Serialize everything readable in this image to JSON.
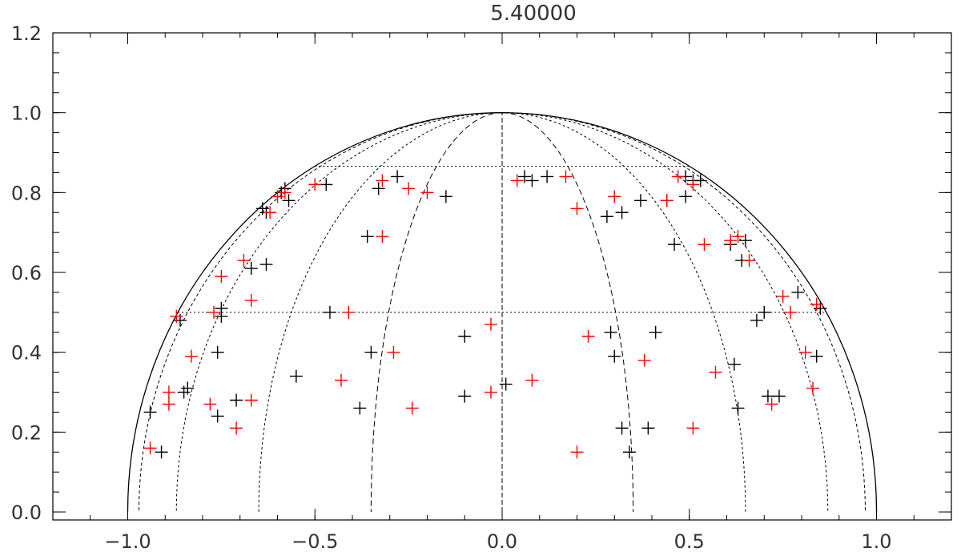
{
  "chart_data": {
    "type": "scatter",
    "title": "5.40000",
    "xlabel": "",
    "ylabel": "",
    "xlim": [
      -1.2,
      1.2
    ],
    "ylim": [
      -0.02,
      1.2
    ],
    "x_ticks": [
      {
        "value": -1.0,
        "label": "−1.0"
      },
      {
        "value": -0.5,
        "label": "−0.5"
      },
      {
        "value": 0.0,
        "label": "0.0"
      },
      {
        "value": 0.5,
        "label": "0.5"
      },
      {
        "value": 1.0,
        "label": "1.0"
      }
    ],
    "y_ticks": [
      {
        "value": 0.0,
        "label": "0.0"
      },
      {
        "value": 0.2,
        "label": "0.2"
      },
      {
        "value": 0.4,
        "label": "0.4"
      },
      {
        "value": 0.6,
        "label": "0.6"
      },
      {
        "value": 0.8,
        "label": "0.8"
      },
      {
        "value": 1.0,
        "label": "1.0"
      },
      {
        "value": 1.2,
        "label": "1.2"
      }
    ],
    "x_minor_step": 0.1,
    "y_minor_step": 0.05,
    "grid": false,
    "overlay": {
      "outer_circle_radius": 1.0,
      "meridian_ellipse_semi_axes": [
        0.35,
        0.65,
        0.87,
        0.97
      ],
      "latitude_lines_y": [
        0.5,
        0.866
      ]
    },
    "series": [
      {
        "color": "#000000",
        "points": [
          [
            -0.94,
            0.25
          ],
          [
            -0.91,
            0.15
          ],
          [
            -0.86,
            0.48
          ],
          [
            -0.85,
            0.3
          ],
          [
            -0.84,
            0.31
          ],
          [
            -0.76,
            0.4
          ],
          [
            -0.76,
            0.24
          ],
          [
            -0.75,
            0.49
          ],
          [
            -0.75,
            0.51
          ],
          [
            -0.71,
            0.28
          ],
          [
            -0.67,
            0.61
          ],
          [
            -0.63,
            0.62
          ],
          [
            -0.64,
            0.76
          ],
          [
            -0.63,
            0.75
          ],
          [
            -0.59,
            0.8
          ],
          [
            -0.58,
            0.81
          ],
          [
            -0.57,
            0.78
          ],
          [
            -0.47,
            0.82
          ],
          [
            -0.46,
            0.5
          ],
          [
            -0.55,
            0.34
          ],
          [
            -0.38,
            0.26
          ],
          [
            -0.36,
            0.69
          ],
          [
            -0.35,
            0.4
          ],
          [
            -0.33,
            0.81
          ],
          [
            -0.28,
            0.84
          ],
          [
            -0.15,
            0.79
          ],
          [
            -0.1,
            0.44
          ],
          [
            -0.1,
            0.29
          ],
          [
            0.01,
            0.32
          ],
          [
            0.06,
            0.84
          ],
          [
            0.08,
            0.83
          ],
          [
            0.12,
            0.84
          ],
          [
            0.28,
            0.74
          ],
          [
            0.29,
            0.45
          ],
          [
            0.3,
            0.39
          ],
          [
            0.32,
            0.21
          ],
          [
            0.32,
            0.75
          ],
          [
            0.34,
            0.15
          ],
          [
            0.37,
            0.78
          ],
          [
            0.39,
            0.21
          ],
          [
            0.41,
            0.45
          ],
          [
            0.44,
            0.78
          ],
          [
            0.46,
            0.67
          ],
          [
            0.49,
            0.79
          ],
          [
            0.49,
            0.84
          ],
          [
            0.51,
            0.83
          ],
          [
            0.53,
            0.83
          ],
          [
            0.61,
            0.67
          ],
          [
            0.62,
            0.37
          ],
          [
            0.63,
            0.26
          ],
          [
            0.64,
            0.63
          ],
          [
            0.65,
            0.68
          ],
          [
            0.68,
            0.48
          ],
          [
            0.7,
            0.5
          ],
          [
            0.71,
            0.29
          ],
          [
            0.74,
            0.29
          ],
          [
            0.79,
            0.55
          ],
          [
            0.84,
            0.39
          ],
          [
            0.85,
            0.51
          ]
        ]
      },
      {
        "color": "#ff0000",
        "points": [
          [
            -0.94,
            0.16
          ],
          [
            -0.89,
            0.3
          ],
          [
            -0.89,
            0.27
          ],
          [
            -0.87,
            0.49
          ],
          [
            -0.83,
            0.39
          ],
          [
            -0.78,
            0.27
          ],
          [
            -0.77,
            0.5
          ],
          [
            -0.75,
            0.59
          ],
          [
            -0.71,
            0.21
          ],
          [
            -0.69,
            0.63
          ],
          [
            -0.67,
            0.53
          ],
          [
            -0.67,
            0.28
          ],
          [
            -0.62,
            0.75
          ],
          [
            -0.6,
            0.79
          ],
          [
            -0.58,
            0.8
          ],
          [
            -0.5,
            0.82
          ],
          [
            -0.43,
            0.33
          ],
          [
            -0.41,
            0.5
          ],
          [
            -0.32,
            0.83
          ],
          [
            -0.32,
            0.69
          ],
          [
            -0.29,
            0.4
          ],
          [
            -0.25,
            0.81
          ],
          [
            -0.24,
            0.26
          ],
          [
            -0.2,
            0.8
          ],
          [
            -0.03,
            0.47
          ],
          [
            -0.03,
            0.3
          ],
          [
            0.04,
            0.83
          ],
          [
            0.08,
            0.33
          ],
          [
            0.17,
            0.84
          ],
          [
            0.2,
            0.76
          ],
          [
            0.2,
            0.15
          ],
          [
            0.23,
            0.44
          ],
          [
            0.3,
            0.79
          ],
          [
            0.38,
            0.38
          ],
          [
            0.44,
            0.78
          ],
          [
            0.47,
            0.84
          ],
          [
            0.51,
            0.82
          ],
          [
            0.51,
            0.21
          ],
          [
            0.54,
            0.67
          ],
          [
            0.57,
            0.35
          ],
          [
            0.61,
            0.68
          ],
          [
            0.63,
            0.69
          ],
          [
            0.66,
            0.63
          ],
          [
            0.72,
            0.27
          ],
          [
            0.75,
            0.54
          ],
          [
            0.77,
            0.5
          ],
          [
            0.81,
            0.4
          ],
          [
            0.83,
            0.31
          ],
          [
            0.84,
            0.52
          ]
        ]
      }
    ]
  }
}
